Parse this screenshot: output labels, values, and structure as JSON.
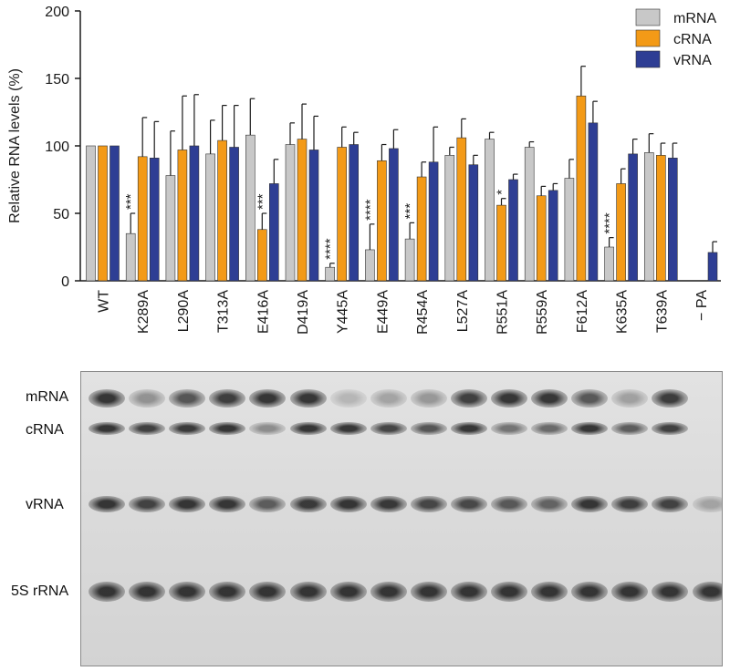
{
  "chart_data": {
    "type": "bar",
    "ylabel": "Relative RNA levels (%)",
    "ylim": [
      0,
      200
    ],
    "yticks": [
      "0",
      "50",
      "100",
      "150",
      "200"
    ],
    "legend_position": "top-right",
    "categories": [
      "WT",
      "K289A",
      "L290A",
      "T313A",
      "E416A",
      "D419A",
      "Y445A",
      "E449A",
      "R454A",
      "L527A",
      "R551A",
      "R559A",
      "F612A",
      "K635A",
      "T639A",
      "− PA"
    ],
    "series": [
      {
        "name": "mRNA",
        "color": "#c8c8c8",
        "values": [
          100,
          35,
          78,
          94,
          108,
          101,
          10,
          23,
          31,
          93,
          105,
          99,
          76,
          25,
          95,
          null
        ],
        "errors": [
          0,
          15,
          33,
          25,
          27,
          16,
          3,
          19,
          12,
          6,
          5,
          4,
          14,
          7,
          14,
          null
        ]
      },
      {
        "name": "cRNA",
        "color": "#f39a17",
        "values": [
          100,
          92,
          97,
          104,
          38,
          105,
          99,
          89,
          77,
          106,
          56,
          63,
          137,
          72,
          93,
          null
        ],
        "errors": [
          0,
          29,
          40,
          26,
          12,
          26,
          15,
          12,
          11,
          14,
          5,
          7,
          22,
          11,
          9,
          null
        ]
      },
      {
        "name": "vRNA",
        "color": "#2e3e94",
        "values": [
          100,
          91,
          100,
          99,
          72,
          97,
          101,
          98,
          88,
          86,
          75,
          67,
          117,
          94,
          91,
          21
        ],
        "errors": [
          0,
          27,
          38,
          31,
          18,
          25,
          9,
          14,
          26,
          7,
          4,
          5,
          16,
          11,
          11,
          8
        ]
      }
    ],
    "annotations": [
      {
        "category": "K289A",
        "series": "mRNA",
        "text": "***"
      },
      {
        "category": "E416A",
        "series": "cRNA",
        "text": "***"
      },
      {
        "category": "Y445A",
        "series": "mRNA",
        "text": "****"
      },
      {
        "category": "E449A",
        "series": "mRNA",
        "text": "****"
      },
      {
        "category": "R454A",
        "series": "mRNA",
        "text": "***"
      },
      {
        "category": "R551A",
        "series": "cRNA",
        "text": "*"
      },
      {
        "category": "K635A",
        "series": "mRNA",
        "text": "****"
      }
    ]
  },
  "gel": {
    "band_labels": [
      "mRNA",
      "cRNA",
      "vRNA",
      "5S rRNA"
    ],
    "lanes": [
      "WT",
      "K289A",
      "L290A",
      "T313A",
      "E416A",
      "D419A",
      "Y445A",
      "E449A",
      "R454A",
      "L527A",
      "R551A",
      "R559A",
      "F612A",
      "K635A",
      "T639A",
      "− PA"
    ],
    "relative_intensity": {
      "mRNA": [
        1.0,
        0.35,
        0.78,
        0.94,
        1.0,
        1.0,
        0.1,
        0.23,
        0.31,
        0.93,
        1.0,
        0.99,
        0.76,
        0.25,
        0.95,
        0.0
      ],
      "cRNA": [
        1.0,
        0.92,
        0.97,
        1.0,
        0.38,
        1.0,
        0.99,
        0.89,
        0.77,
        1.0,
        0.56,
        0.63,
        1.0,
        0.72,
        0.93,
        0.0
      ],
      "vRNA": [
        1.0,
        0.91,
        1.0,
        0.99,
        0.72,
        0.97,
        1.0,
        0.98,
        0.88,
        0.86,
        0.75,
        0.67,
        1.0,
        0.94,
        0.91,
        0.21
      ],
      "5S rRNA": [
        1,
        1,
        1,
        1,
        1,
        1,
        1,
        1,
        1,
        1,
        1,
        1,
        1,
        1,
        1,
        1
      ]
    }
  }
}
